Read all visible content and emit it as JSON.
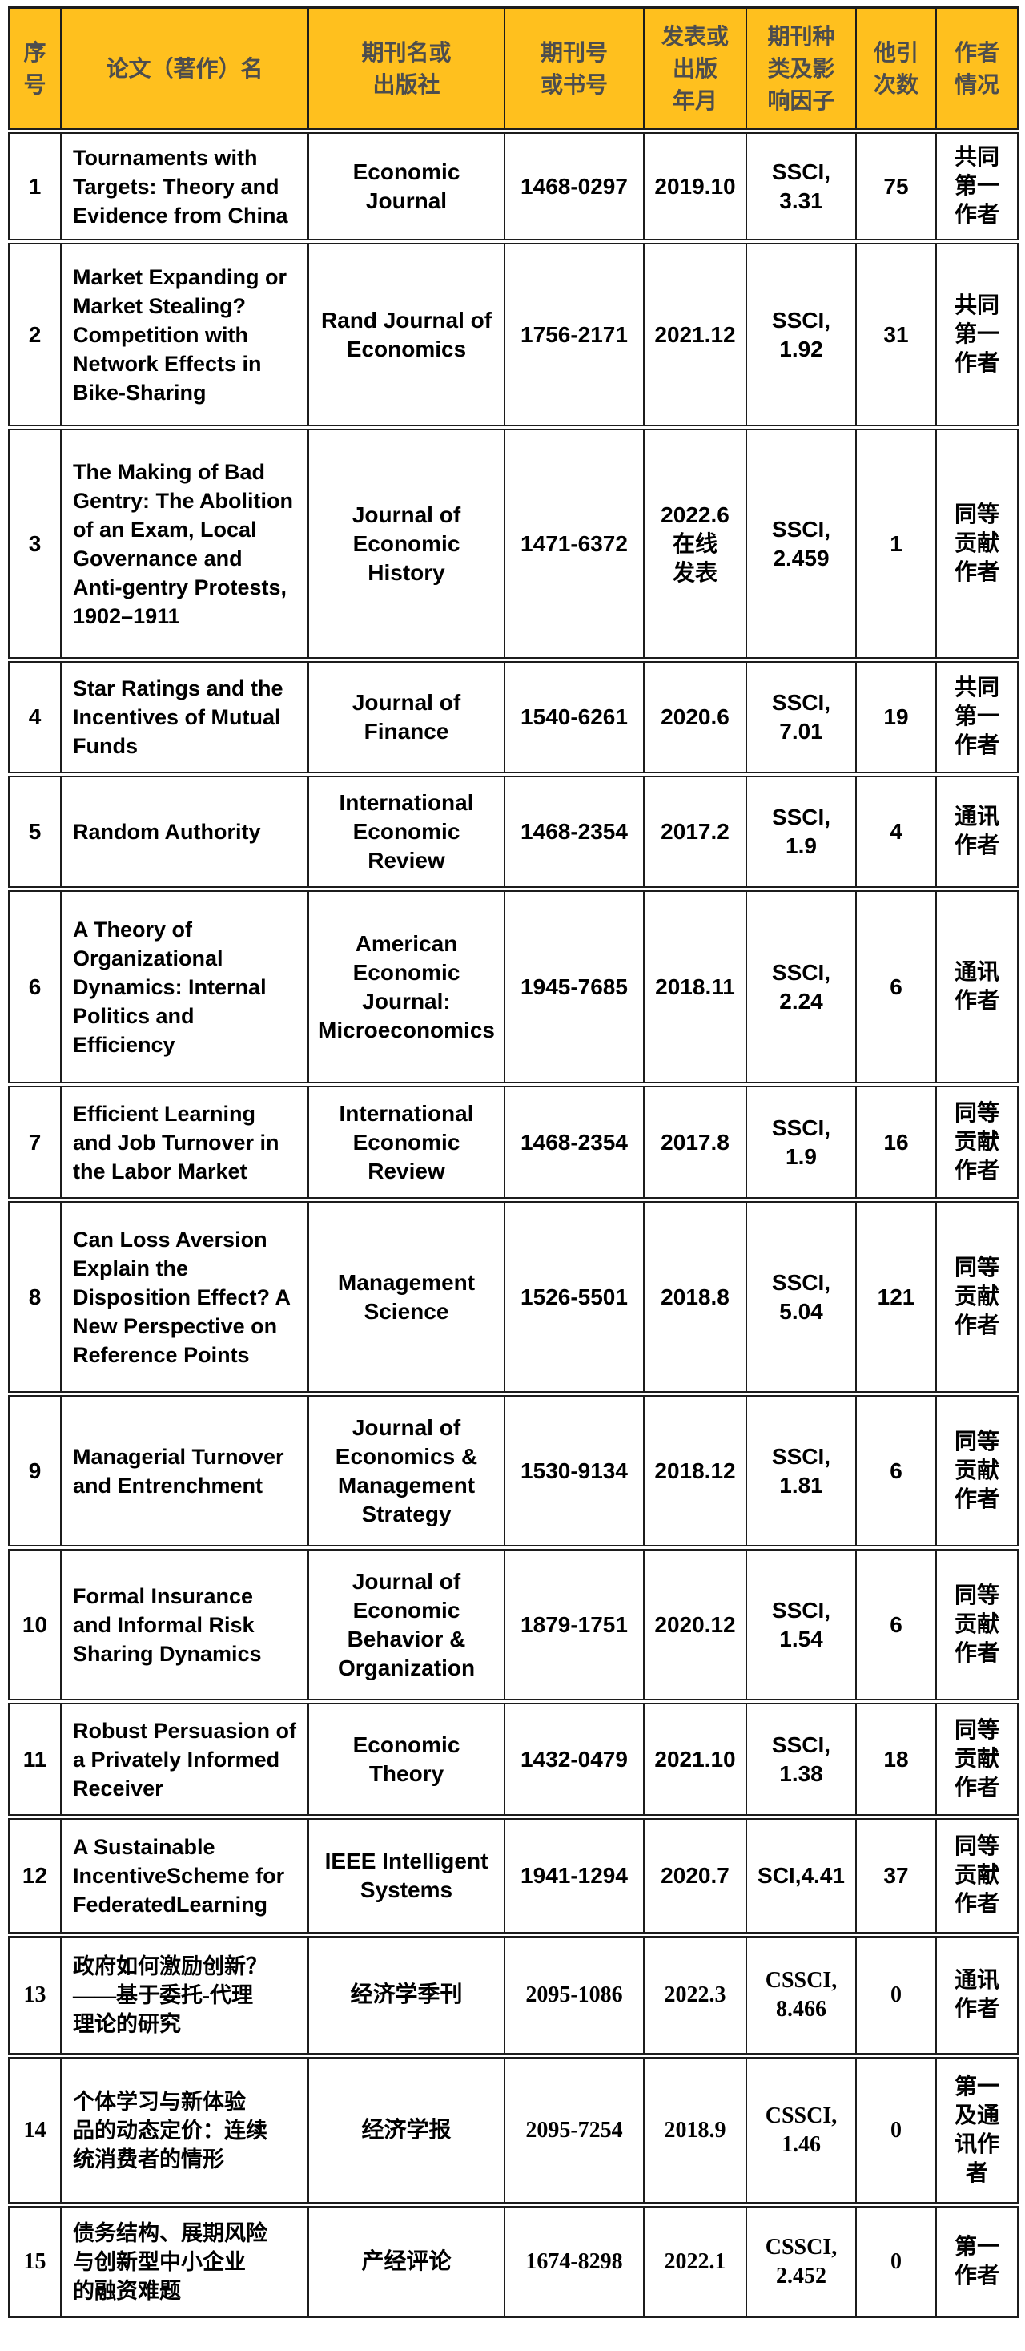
{
  "colors": {
    "header_bg": "#FFC01E",
    "header_text": "#4D4D4D",
    "border": "#1C1C1C",
    "body_text": "#000000"
  },
  "table": {
    "columns": [
      "序\n号",
      "论文（著作）名",
      "期刊名或\n出版社",
      "期刊号\n或书号",
      "发表或\n出版\n年月",
      "期刊种\n类及影\n响因子",
      "他引\n次数",
      "作者\n情况"
    ],
    "rows": [
      {
        "no": "1",
        "title": "Tournaments with\nTargets: Theory and\nEvidence from China",
        "journal": "Economic\nJournal",
        "issn": "1468-0297",
        "date": "2019.10",
        "category": "SSCI,\n3.31",
        "cited": "75",
        "author": "共同\n第一\n作者"
      },
      {
        "no": "2",
        "title": "Market Expanding or\nMarket Stealing?\nCompetition with\nNetwork Effects in\nBike-Sharing",
        "journal": "Rand Journal of\nEconomics",
        "issn": "1756-2171",
        "date": "2021.12",
        "category": "SSCI,\n1.92",
        "cited": "31",
        "author": "共同\n第一\n作者"
      },
      {
        "no": "3",
        "title": "The Making of Bad\nGentry: The Abolition\nof an Exam, Local\nGovernance and\nAnti-gentry Protests,\n1902–1911",
        "journal": "Journal of\nEconomic\nHistory",
        "issn": "1471-6372",
        "date": "2022.6\n在线\n发表",
        "category": "SSCI,\n2.459",
        "cited": "1",
        "author": "同等\n贡献\n作者"
      },
      {
        "no": "4",
        "title": "Star Ratings and the\nIncentives of Mutual\nFunds",
        "journal": "Journal of\nFinance",
        "issn": "1540-6261",
        "date": "2020.6",
        "category": "SSCI,\n7.01",
        "cited": "19",
        "author": "共同\n第一\n作者"
      },
      {
        "no": "5",
        "title": "Random Authority",
        "journal": "International\nEconomic\nReview",
        "issn": "1468-2354",
        "date": "2017.2",
        "category": "SSCI,\n1.9",
        "cited": "4",
        "author": "通讯\n作者"
      },
      {
        "no": "6",
        "title": "A Theory of\nOrganizational\nDynamics: Internal\nPolitics and\nEfficiency",
        "journal": "American\nEconomic\nJournal:\nMicroeconomics",
        "issn": "1945-7685",
        "date": "2018.11",
        "category": "SSCI,\n2.24",
        "cited": "6",
        "author": "通讯\n作者"
      },
      {
        "no": "7",
        "title": "Efficient Learning\nand Job Turnover in\nthe Labor Market",
        "journal": "International\nEconomic\nReview",
        "issn": "1468-2354",
        "date": "2017.8",
        "category": "SSCI,\n1.9",
        "cited": "16",
        "author": "同等\n贡献\n作者"
      },
      {
        "no": "8",
        "title": "Can Loss Aversion\nExplain the\nDisposition Effect? A\nNew Perspective on\nReference Points",
        "journal": "Management\nScience",
        "issn": "1526-5501",
        "date": "2018.8",
        "category": "SSCI,\n5.04",
        "cited": "121",
        "author": "同等\n贡献\n作者"
      },
      {
        "no": "9",
        "title": "Managerial Turnover\nand Entrenchment",
        "journal": "Journal of\nEconomics &\nManagement\nStrategy",
        "issn": "1530-9134",
        "date": "2018.12",
        "category": "SSCI,\n1.81",
        "cited": "6",
        "author": "同等\n贡献\n作者"
      },
      {
        "no": "10",
        "title": "Formal Insurance\nand Informal Risk\nSharing Dynamics",
        "journal": "Journal of\nEconomic\nBehavior &\nOrganization",
        "issn": "1879-1751",
        "date": "2020.12",
        "category": "SSCI,\n1.54",
        "cited": "6",
        "author": "同等\n贡献\n作者"
      },
      {
        "no": "11",
        "title": "Robust Persuasion of\na Privately Informed\nReceiver",
        "journal": "Economic\nTheory",
        "issn": "1432-0479",
        "date": "2021.10",
        "category": "SSCI,\n1.38",
        "cited": "18",
        "author": "同等\n贡献\n作者"
      },
      {
        "no": "12",
        "title": "A Sustainable\nIncentiveScheme for\nFederatedLearning",
        "journal": "IEEE Intelligent\nSystems",
        "issn": "1941-1294",
        "date": "2020.7",
        "category": "SCI,4.41",
        "cited": "37",
        "author": "同等\n贡献\n作者"
      },
      {
        "no": "13",
        "title": "政府如何激励创新？\n——基于委托-代理\n理论的研究",
        "journal": "经济学季刊",
        "issn": "2095-1086",
        "date": "2022.3",
        "category": "CSSCI,\n8.466",
        "cited": "0",
        "author": "通讯\n作者"
      },
      {
        "no": "14",
        "title": "个体学习与新体验\n品的动态定价：连续\n统消费者的情形",
        "journal": "经济学报",
        "issn": "2095-7254",
        "date": "2018.9",
        "category": "CSSCI,\n1.46",
        "cited": "0",
        "author": "第一\n及通\n讯作\n者"
      },
      {
        "no": "15",
        "title": "债务结构、展期风险\n与创新型中小企业\n的融资难题",
        "journal": "产经评论",
        "issn": "1674-8298",
        "date": "2022.1",
        "category": "CSSCI,\n2.452",
        "cited": "0",
        "author": "第一\n作者"
      }
    ]
  }
}
